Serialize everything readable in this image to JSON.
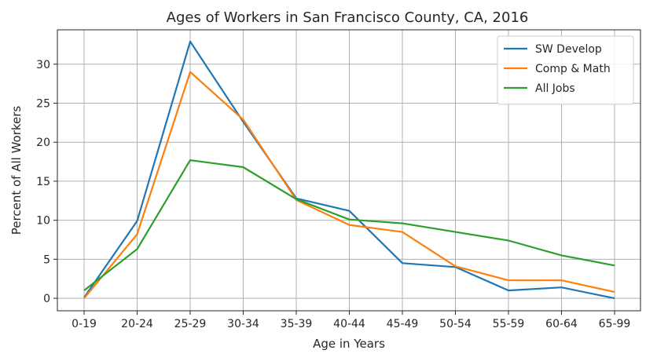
{
  "chart_data": {
    "type": "line",
    "title": "Ages of Workers in San Francisco County, CA, 2016",
    "xlabel": "Age in Years",
    "ylabel": "Percent of All Workers",
    "categories": [
      "0-19",
      "20-24",
      "25-29",
      "30-34",
      "35-39",
      "40-44",
      "45-49",
      "50-54",
      "55-59",
      "60-64",
      "65-99"
    ],
    "yticks": [
      0,
      5,
      10,
      15,
      20,
      25,
      30
    ],
    "ylim": [
      -1.6,
      34.4
    ],
    "grid": true,
    "legend_position": "top-right",
    "series": [
      {
        "name": "SW Develop",
        "color": "#1f77b4",
        "values": [
          0.1,
          9.9,
          32.9,
          22.6,
          12.8,
          11.2,
          4.5,
          4.0,
          1.0,
          1.4,
          0.0
        ]
      },
      {
        "name": "Comp & Math",
        "color": "#ff7f0e",
        "values": [
          0.0,
          8.2,
          29.0,
          22.9,
          12.6,
          9.4,
          8.5,
          4.1,
          2.3,
          2.3,
          0.8
        ]
      },
      {
        "name": "All Jobs",
        "color": "#2ca02c",
        "values": [
          1.0,
          6.3,
          17.7,
          16.8,
          12.7,
          10.1,
          9.6,
          8.5,
          7.4,
          5.5,
          4.2
        ]
      }
    ]
  }
}
